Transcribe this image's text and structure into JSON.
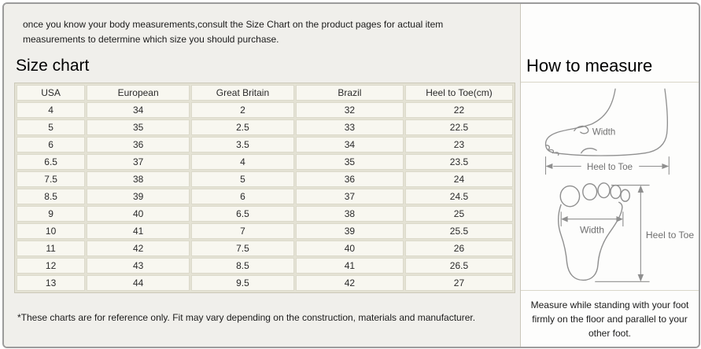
{
  "intro": "once you know your body measurements,consult the Size Chart on the product pages for actual item measurements to determine which size you should purchase.",
  "size_chart": {
    "title": "Size chart",
    "footnote": "*These charts are for reference only. Fit may vary depending on the construction, materials and manufacturer."
  },
  "table": {
    "headers": [
      "USA",
      "European",
      "Great Britain",
      "Brazil",
      "Heel to Toe(cm)"
    ],
    "rows": [
      [
        "4",
        "34",
        "2",
        "32",
        "22"
      ],
      [
        "5",
        "35",
        "2.5",
        "33",
        "22.5"
      ],
      [
        "6",
        "36",
        "3.5",
        "34",
        "23"
      ],
      [
        "6.5",
        "37",
        "4",
        "35",
        "23.5"
      ],
      [
        "7.5",
        "38",
        "5",
        "36",
        "24"
      ],
      [
        "8.5",
        "39",
        "6",
        "37",
        "24.5"
      ],
      [
        "9",
        "40",
        "6.5",
        "38",
        "25"
      ],
      [
        "10",
        "41",
        "7",
        "39",
        "25.5"
      ],
      [
        "11",
        "42",
        "7.5",
        "40",
        "26"
      ],
      [
        "12",
        "43",
        "8.5",
        "41",
        "26.5"
      ],
      [
        "13",
        "44",
        "9.5",
        "42",
        "27"
      ]
    ]
  },
  "how_to_measure": {
    "title": "How to measure",
    "side_view": {
      "width_label": "Width",
      "length_label": "Heel to Toe"
    },
    "top_view": {
      "width_label": "Width",
      "length_label": "Heel to Toe"
    },
    "caption": "Measure while standing with your foot firmly on the floor and parallel to your other foot."
  },
  "colors": {
    "cell_bg": "#f8f7f0",
    "grid_line": "#dcdacb",
    "left_panel_bg": "#f0efeb",
    "right_panel_bg": "#fdfdfc",
    "frame_border": "#9b9b9b",
    "diagram_stroke": "#8f8f8f",
    "diagram_text": "#707070",
    "body_text": "#1b1b1b"
  }
}
